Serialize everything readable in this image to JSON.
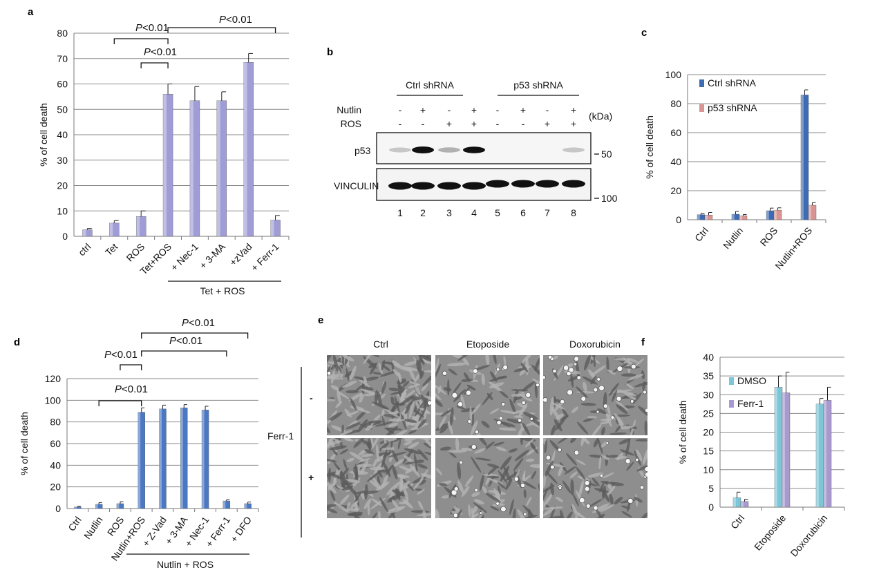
{
  "panel_labels": {
    "a": "a",
    "b": "b",
    "c": "c",
    "d": "d",
    "e": "e",
    "f": "f"
  },
  "chart_data": [
    {
      "panel": "a",
      "type": "bar",
      "categories": [
        "ctrl",
        "Tet",
        "ROS",
        "Tet+ROS",
        "+ Nec-1",
        "+ 3-MA",
        "+zVad",
        "+ Ferr-1"
      ],
      "values": [
        2.6,
        5.2,
        7.8,
        56,
        53.4,
        53.4,
        68.5,
        6.4
      ],
      "errors": [
        0.5,
        1.0,
        2.2,
        4.0,
        5.6,
        3.5,
        3.5,
        1.8
      ],
      "ylabel": "% of cell death",
      "ylim": [
        0,
        80
      ],
      "yticks": [
        0,
        10,
        20,
        30,
        40,
        50,
        60,
        70,
        80
      ],
      "grid": true,
      "group_label": "Tet + ROS",
      "significance": [
        {
          "p_prefix": "P",
          "p_text": "<0.01",
          "from": "Tet",
          "to": "Tet+ROS"
        },
        {
          "p_prefix": "P",
          "p_text": "<0.01",
          "from": "Tet+ROS",
          "to": "+ Ferr-1"
        },
        {
          "p_prefix": "P",
          "p_text": "<0.01",
          "from": "ROS",
          "to": "Tet+ROS"
        }
      ],
      "color": "#a09dd6"
    },
    {
      "panel": "c",
      "type": "bar",
      "categories": [
        "Ctrl",
        "Nutlin",
        "ROS",
        "Nutlin+ROS"
      ],
      "series": [
        {
          "name": "Ctrl shRNA",
          "values": [
            3.5,
            3.8,
            6.2,
            86
          ],
          "errors": [
            1.0,
            2.0,
            1.8,
            3.5
          ],
          "color": "#3d6cb5"
        },
        {
          "name": "p53 shRNA",
          "values": [
            3.2,
            2.8,
            6.6,
            10
          ],
          "errors": [
            1.8,
            0.8,
            1.6,
            1.8
          ],
          "color": "#d99593"
        }
      ],
      "ylabel": "% of cell death",
      "ylim": [
        0,
        100
      ],
      "yticks": [
        0,
        20,
        40,
        60,
        80,
        100
      ],
      "grid": true,
      "legend": "top-left"
    },
    {
      "panel": "d",
      "type": "bar",
      "categories": [
        "Ctrl",
        "Nutlin",
        "ROS",
        "Nutlin+ROS",
        "+ Z-Vad",
        "+ 3-MA",
        "+ Nec-1",
        "+ Ferr-1",
        "+ DFO"
      ],
      "values": [
        1.5,
        4.0,
        4.5,
        89,
        92,
        93,
        91,
        7,
        4.5
      ],
      "errors": [
        0.6,
        1.5,
        1.8,
        4.0,
        3.5,
        3.0,
        3.5,
        1.2,
        1.5
      ],
      "ylabel": "% of cell death",
      "ylim": [
        0,
        120
      ],
      "yticks": [
        0,
        20,
        40,
        60,
        80,
        100,
        120
      ],
      "grid": true,
      "group_label": "Nutlin + ROS",
      "significance": [
        {
          "p_prefix": "P",
          "p_text": "<0.01",
          "from": "Nutlin+ROS",
          "to": "+ DFO"
        },
        {
          "p_prefix": "P",
          "p_text": "<0.01",
          "from": "Nutlin+ROS",
          "to": "+ Ferr-1"
        },
        {
          "p_prefix": "P",
          "p_text": "<0.01",
          "from": "Nutlin",
          "to": "Nutlin+ROS"
        },
        {
          "p_prefix": "P",
          "p_text": "<0.01",
          "from": "ROS",
          "to": "Nutlin+ROS"
        }
      ],
      "color": "#4b78c2"
    },
    {
      "panel": "f",
      "type": "bar",
      "categories": [
        "Ctrl",
        "Etoposide",
        "Doxorubicin"
      ],
      "series": [
        {
          "name": "DMSO",
          "values": [
            2.5,
            32,
            27.5
          ],
          "errors": [
            1.5,
            3.0,
            1.5
          ],
          "color": "#7cc6d8"
        },
        {
          "name": "Ferr-1",
          "values": [
            1.5,
            30.5,
            28.5
          ],
          "errors": [
            0.6,
            5.5,
            3.5
          ],
          "color": "#a89ad0"
        }
      ],
      "ylabel": "% of cell death",
      "ylim": [
        0,
        40
      ],
      "yticks": [
        0,
        5,
        10,
        15,
        20,
        25,
        30,
        35,
        40
      ],
      "grid": true,
      "legend": "top-left"
    }
  ],
  "blot": {
    "groups": [
      "Ctrl shRNA",
      "p53 shRNA"
    ],
    "rows": [
      {
        "label": "Nutlin",
        "values": [
          "-",
          "+",
          "-",
          "+",
          "-",
          "+",
          "-",
          "+"
        ]
      },
      {
        "label": "ROS",
        "values": [
          "-",
          "-",
          "+",
          "+",
          "-",
          "-",
          "+",
          "+"
        ]
      }
    ],
    "unit": "(kDa)",
    "proteins": [
      "p53",
      "VINCULIN"
    ],
    "markers": [
      "50",
      "100"
    ],
    "lanes": [
      "1",
      "2",
      "3",
      "4",
      "5",
      "6",
      "7",
      "8"
    ],
    "p53_intensity": [
      0.05,
      1.0,
      0.15,
      0.85,
      0,
      0,
      0,
      0.05
    ]
  },
  "micrographs": {
    "columns": [
      "Ctrl",
      "Etoposide",
      "Doxorubicin"
    ],
    "row_signs": [
      "-",
      "+"
    ],
    "treatment": "Ferr-1"
  }
}
